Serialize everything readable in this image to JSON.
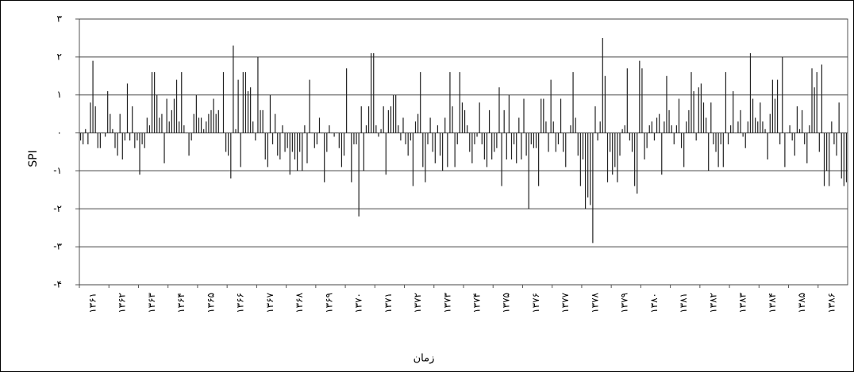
{
  "chart_data": {
    "type": "bar",
    "color": "#222222",
    "grid": true,
    "y_label": "SPI",
    "x_label": "زمان",
    "ylim": [
      -4,
      3
    ],
    "yticks": [
      {
        "value": -4,
        "label": "-۴"
      },
      {
        "value": -3,
        "label": "-۳"
      },
      {
        "value": -2,
        "label": "-۲"
      },
      {
        "value": -1,
        "label": "-۱"
      },
      {
        "value": 0,
        "label": "٠"
      },
      {
        "value": 1,
        "label": "۱"
      },
      {
        "value": 2,
        "label": "۲"
      },
      {
        "value": 3,
        "label": "۳"
      }
    ],
    "categories": [
      "۱۳۶۱",
      null,
      null,
      null,
      null,
      null,
      null,
      null,
      null,
      null,
      null,
      null,
      "۱۳۶۲",
      null,
      null,
      null,
      null,
      null,
      null,
      null,
      null,
      null,
      null,
      null,
      "۱۳۶۳",
      null,
      null,
      null,
      null,
      null,
      null,
      null,
      null,
      null,
      null,
      null,
      "۱۳۶۴",
      null,
      null,
      null,
      null,
      null,
      null,
      null,
      null,
      null,
      null,
      null,
      "۱۳۶۵",
      null,
      null,
      null,
      null,
      null,
      null,
      null,
      null,
      null,
      null,
      null,
      "۱۳۶۶",
      null,
      null,
      null,
      null,
      null,
      null,
      null,
      null,
      null,
      null,
      null,
      "۱۳۶۷",
      null,
      null,
      null,
      null,
      null,
      null,
      null,
      null,
      null,
      null,
      null,
      "۱۳۶۸",
      null,
      null,
      null,
      null,
      null,
      null,
      null,
      null,
      null,
      null,
      null,
      "۱۳۶۹",
      null,
      null,
      null,
      null,
      null,
      null,
      null,
      null,
      null,
      null,
      null,
      "۱۳۷۰",
      null,
      null,
      null,
      null,
      null,
      null,
      null,
      null,
      null,
      null,
      null,
      "۱۳۷۱",
      null,
      null,
      null,
      null,
      null,
      null,
      null,
      null,
      null,
      null,
      null,
      "۱۳۷۲",
      null,
      null,
      null,
      null,
      null,
      null,
      null,
      null,
      null,
      null,
      null,
      "۱۳۷۳",
      null,
      null,
      null,
      null,
      null,
      null,
      null,
      null,
      null,
      null,
      null,
      "۱۳۷۴",
      null,
      null,
      null,
      null,
      null,
      null,
      null,
      null,
      null,
      null,
      null,
      "۱۳۷۵",
      null,
      null,
      null,
      null,
      null,
      null,
      null,
      null,
      null,
      null,
      null,
      "۱۳۷۶",
      null,
      null,
      null,
      null,
      null,
      null,
      null,
      null,
      null,
      null,
      null,
      "۱۳۷۷",
      null,
      null,
      null,
      null,
      null,
      null,
      null,
      null,
      null,
      null,
      null,
      "۱۳۷۸",
      null,
      null,
      null,
      null,
      null,
      null,
      null,
      null,
      null,
      null,
      null,
      "۱۳۷۹",
      null,
      null,
      null,
      null,
      null,
      null,
      null,
      null,
      null,
      null,
      null,
      "۱۳۸۰",
      null,
      null,
      null,
      null,
      null,
      null,
      null,
      null,
      null,
      null,
      null,
      "۱۳۸۱",
      null,
      null,
      null,
      null,
      null,
      null,
      null,
      null,
      null,
      null,
      null,
      "۱۳۸۲",
      null,
      null,
      null,
      null,
      null,
      null,
      null,
      null,
      null,
      null,
      null,
      "۱۳۸۳",
      null,
      null,
      null,
      null,
      null,
      null,
      null,
      null,
      null,
      null,
      null,
      "۱۳۸۴",
      null,
      null,
      null,
      null,
      null,
      null,
      null,
      null,
      null,
      null,
      null,
      "۱۳۸۵",
      null,
      null,
      null,
      null,
      null,
      null,
      null,
      null,
      null,
      null,
      null,
      "۱۳۸۶",
      null,
      null,
      null,
      null,
      null,
      null,
      null,
      null,
      null,
      null,
      null
    ],
    "values": [
      -0.2,
      -0.3,
      0.1,
      -0.3,
      0.8,
      1.9,
      0.7,
      -0.4,
      -0.4,
      0.0,
      -0.1,
      1.1,
      0.5,
      0.1,
      -0.4,
      -0.6,
      0.5,
      -0.7,
      -0.2,
      1.3,
      -0.2,
      0.7,
      -0.4,
      -0.2,
      -1.1,
      -0.3,
      -0.4,
      0.4,
      0.2,
      1.6,
      1.6,
      1.0,
      0.4,
      0.5,
      -0.8,
      0.9,
      0.3,
      0.6,
      0.9,
      1.4,
      0.3,
      1.6,
      0.2,
      0.0,
      -0.6,
      -0.2,
      0.5,
      1.0,
      0.4,
      0.4,
      0.1,
      0.3,
      0.5,
      0.6,
      0.9,
      0.5,
      0.6,
      0.0,
      1.6,
      -0.5,
      -0.6,
      -1.2,
      2.3,
      0.1,
      1.4,
      -0.9,
      1.6,
      1.6,
      1.1,
      1.2,
      0.3,
      -0.2,
      2.0,
      0.6,
      0.6,
      -0.7,
      -0.9,
      1.0,
      -0.3,
      0.5,
      -0.6,
      -0.7,
      0.2,
      -0.5,
      -0.4,
      -1.1,
      -0.5,
      -0.7,
      -1.0,
      -0.5,
      -1.0,
      0.2,
      -0.8,
      1.4,
      0.0,
      -0.4,
      -0.3,
      0.4,
      0.0,
      -1.3,
      -0.5,
      0.2,
      0.0,
      -0.1,
      0.0,
      -0.4,
      -0.9,
      -0.6,
      1.7,
      0.0,
      -1.3,
      -0.3,
      -0.3,
      -2.2,
      0.7,
      -1.0,
      0.2,
      0.7,
      2.1,
      2.1,
      0.2,
      -0.1,
      0.1,
      0.7,
      -1.1,
      0.6,
      0.7,
      1.0,
      1.0,
      0.2,
      -0.2,
      0.4,
      -0.3,
      -0.6,
      -0.2,
      -1.4,
      0.3,
      0.5,
      1.6,
      -0.9,
      -1.3,
      -0.3,
      0.4,
      -0.5,
      -0.8,
      0.2,
      -0.6,
      -1.0,
      0.4,
      -0.9,
      1.6,
      0.7,
      -0.9,
      -0.3,
      1.6,
      0.8,
      0.6,
      0.2,
      -0.5,
      -0.8,
      -0.3,
      -0.1,
      0.8,
      -0.3,
      -0.7,
      -0.9,
      0.6,
      -0.7,
      -0.5,
      -0.4,
      1.2,
      -1.4,
      0.6,
      -0.7,
      1.0,
      -0.7,
      -0.3,
      -0.8,
      0.4,
      -0.7,
      0.9,
      -0.6,
      -2.0,
      -0.3,
      -0.4,
      -0.4,
      -1.4,
      0.9,
      0.9,
      0.3,
      -0.5,
      1.4,
      0.3,
      -0.5,
      -0.3,
      0.9,
      -0.5,
      -0.9,
      0.0,
      0.2,
      1.6,
      0.4,
      -0.6,
      -1.4,
      -0.7,
      -2.0,
      -1.7,
      -1.9,
      -2.9,
      0.7,
      -0.2,
      0.3,
      2.5,
      1.5,
      -1.3,
      -0.5,
      -1.1,
      -0.9,
      -1.3,
      -0.6,
      0.1,
      0.2,
      1.7,
      -0.2,
      -0.5,
      -1.4,
      -1.6,
      1.9,
      1.7,
      -0.7,
      -0.4,
      0.2,
      0.3,
      -0.2,
      0.4,
      0.5,
      -1.1,
      0.3,
      1.5,
      0.6,
      0.2,
      -0.3,
      0.2,
      0.9,
      -0.4,
      -0.9,
      0.3,
      0.6,
      1.6,
      1.1,
      -0.2,
      1.2,
      1.3,
      0.8,
      0.4,
      -1.0,
      0.8,
      -0.3,
      -0.5,
      -0.9,
      -0.3,
      -0.9,
      1.6,
      -0.3,
      0.2,
      1.1,
      0.0,
      0.3,
      0.6,
      -0.1,
      -0.4,
      0.3,
      2.1,
      0.9,
      0.4,
      0.3,
      0.8,
      0.3,
      0.1,
      -0.7,
      0.5,
      1.4,
      0.9,
      1.4,
      -0.3,
      2.0,
      -0.9,
      0.0,
      0.2,
      -0.2,
      -0.6,
      0.7,
      0.1,
      0.6,
      -0.3,
      -0.8,
      0.2,
      1.7,
      1.2,
      1.6,
      -0.5,
      1.8,
      -1.4,
      -1.0,
      -1.4,
      0.3,
      -0.3,
      -0.6,
      0.8,
      -1.2,
      -1.4,
      -1.3
    ]
  }
}
